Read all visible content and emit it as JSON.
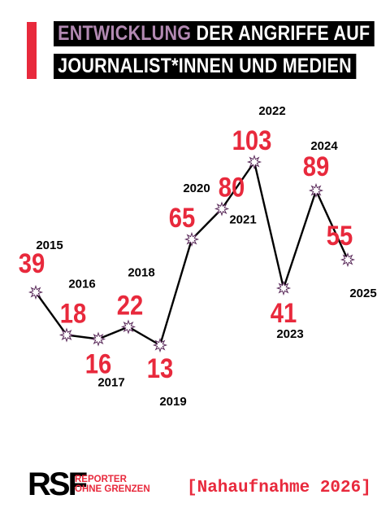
{
  "header": {
    "title_highlight": "ENTWICKLUNG",
    "title_rest": " DER ANGRIFFE AUF",
    "title_line2": "JOURNALIST*INNEN UND MEDIEN"
  },
  "colors": {
    "accent": "#e8293c",
    "highlight": "#b289b2",
    "marker_outline": "#5a2a5a",
    "line": "#000000"
  },
  "chart_data": {
    "type": "line",
    "x": [
      "2015",
      "2016",
      "2017",
      "2018",
      "2019",
      "2020",
      "2021",
      "2022",
      "2023",
      "2024",
      "2025"
    ],
    "values": [
      39,
      18,
      16,
      22,
      13,
      65,
      80,
      103,
      41,
      89,
      55
    ],
    "grid": false,
    "legend": "none",
    "marker": "burst-icon"
  },
  "footer": {
    "logo_mark": "RSF",
    "logo_line1": "REPORTER",
    "logo_line2": "OHNE GRENZEN",
    "tag": "[Nahaufnahme 2026]"
  }
}
